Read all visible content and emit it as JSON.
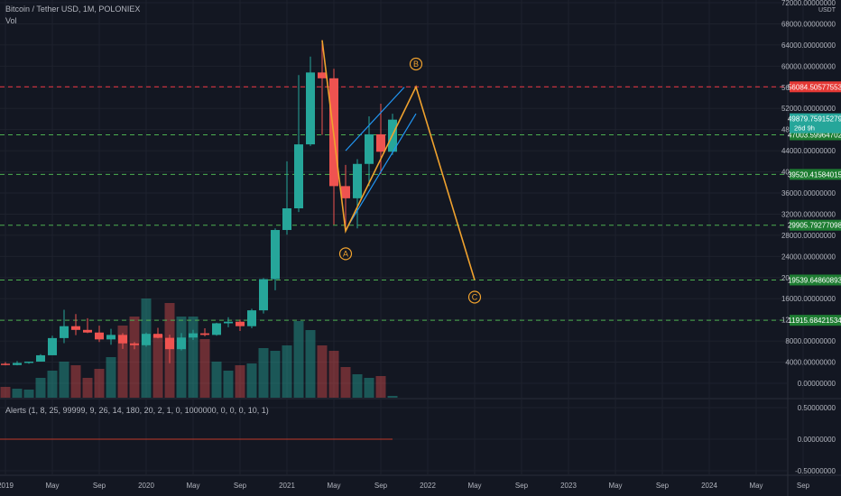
{
  "header": {
    "title": "Bitcoin / Tether USD, 1M, POLONIEX",
    "vol_label": "Vol",
    "alerts_label": "Alerts (1, 8, 25, 99999, 9, 26, 14, 180, 20, 2, 1, 0, 1000000, 0, 0, 0, 10, 1)"
  },
  "colors": {
    "background": "#131722",
    "up": "#26a69a",
    "down": "#ef5350",
    "pattern": "#f0a22e",
    "channel": "#2196f3",
    "level_red": "#f23645",
    "level_green": "#4caf50",
    "current": "#26a69a"
  },
  "chart_data": {
    "type": "candlestick",
    "title": "Bitcoin / Tether USD, 1M, POLONIEX",
    "currency_label": "USDT",
    "price_ticks": [
      0,
      4000,
      8000,
      12000,
      16000,
      20000,
      24000,
      28000,
      32000,
      36000,
      40000,
      44000,
      48000,
      52000,
      56000,
      60000,
      64000,
      68000,
      72000
    ],
    "price_tick_labels": [
      "0.00000000",
      "4000.00000000",
      "8000.00000000",
      "12000.00000000",
      "16000.00000000",
      "20000.00000000",
      "24000.00000000",
      "28000.00000000",
      "32000.00000000",
      "36000.00000000",
      "40000.00000000",
      "44000.00000000",
      "48000.00000000",
      "52000.00000000",
      "56000.00000000",
      "60000.00000000",
      "64000.00000000",
      "68000.00000000",
      "72000.00000000"
    ],
    "time_axis": [
      {
        "month": "2019-01",
        "label": "2019"
      },
      {
        "month": "2019-05",
        "label": "May"
      },
      {
        "month": "2019-09",
        "label": "Sep"
      },
      {
        "month": "2020-01",
        "label": "2020"
      },
      {
        "month": "2020-05",
        "label": "May"
      },
      {
        "month": "2020-09",
        "label": "Sep"
      },
      {
        "month": "2021-01",
        "label": "2021"
      },
      {
        "month": "2021-05",
        "label": "May"
      },
      {
        "month": "2021-09",
        "label": "Sep"
      },
      {
        "month": "2022-01",
        "label": "2022"
      },
      {
        "month": "2022-05",
        "label": "May"
      },
      {
        "month": "2022-09",
        "label": "Sep"
      },
      {
        "month": "2023-01",
        "label": "2023"
      },
      {
        "month": "2023-05",
        "label": "May"
      },
      {
        "month": "2023-09",
        "label": "Sep"
      },
      {
        "month": "2024-01",
        "label": "2024"
      },
      {
        "month": "2024-05",
        "label": "May"
      },
      {
        "month": "2024-09",
        "label": "Sep"
      }
    ],
    "candles": [
      {
        "month": "2018-10",
        "o": 6600,
        "h": 7100,
        "l": 6200,
        "c": 6300
      },
      {
        "month": "2018-11",
        "o": 6300,
        "h": 6500,
        "l": 3700,
        "c": 4000
      },
      {
        "month": "2018-12",
        "o": 4000,
        "h": 4300,
        "l": 3200,
        "c": 3700
      },
      {
        "month": "2019-01",
        "o": 3700,
        "h": 4000,
        "l": 3400,
        "c": 3450
      },
      {
        "month": "2019-02",
        "o": 3450,
        "h": 4200,
        "l": 3400,
        "c": 3850
      },
      {
        "month": "2019-03",
        "o": 3850,
        "h": 4100,
        "l": 3700,
        "c": 4100
      },
      {
        "month": "2019-04",
        "o": 4100,
        "h": 5500,
        "l": 4100,
        "c": 5300
      },
      {
        "month": "2019-05",
        "o": 5300,
        "h": 9000,
        "l": 5300,
        "c": 8550
      },
      {
        "month": "2019-06",
        "o": 8550,
        "h": 13900,
        "l": 7600,
        "c": 10800
      },
      {
        "month": "2019-07",
        "o": 10800,
        "h": 13100,
        "l": 9100,
        "c": 10100
      },
      {
        "month": "2019-08",
        "o": 10100,
        "h": 12300,
        "l": 9500,
        "c": 9600
      },
      {
        "month": "2019-09",
        "o": 9600,
        "h": 10900,
        "l": 7800,
        "c": 8300
      },
      {
        "month": "2019-10",
        "o": 8300,
        "h": 10300,
        "l": 7300,
        "c": 9150
      },
      {
        "month": "2019-11",
        "o": 9150,
        "h": 9500,
        "l": 6500,
        "c": 7550
      },
      {
        "month": "2019-12",
        "o": 7550,
        "h": 7800,
        "l": 6450,
        "c": 7200
      },
      {
        "month": "2020-01",
        "o": 7200,
        "h": 9600,
        "l": 6900,
        "c": 9350
      },
      {
        "month": "2020-02",
        "o": 9350,
        "h": 10500,
        "l": 8500,
        "c": 8600
      },
      {
        "month": "2020-03",
        "o": 8600,
        "h": 9200,
        "l": 3800,
        "c": 6450
      },
      {
        "month": "2020-04",
        "o": 6450,
        "h": 9500,
        "l": 6200,
        "c": 8650
      },
      {
        "month": "2020-05",
        "o": 8650,
        "h": 10100,
        "l": 8200,
        "c": 9450
      },
      {
        "month": "2020-06",
        "o": 9450,
        "h": 10400,
        "l": 8900,
        "c": 9150
      },
      {
        "month": "2020-07",
        "o": 9150,
        "h": 11450,
        "l": 9000,
        "c": 11350
      },
      {
        "month": "2020-08",
        "o": 11350,
        "h": 12500,
        "l": 10600,
        "c": 11650
      },
      {
        "month": "2020-09",
        "o": 11650,
        "h": 12050,
        "l": 9900,
        "c": 10800
      },
      {
        "month": "2020-10",
        "o": 10800,
        "h": 14100,
        "l": 10400,
        "c": 13800
      },
      {
        "month": "2020-11",
        "o": 13800,
        "h": 19900,
        "l": 13200,
        "c": 19700
      },
      {
        "month": "2020-12",
        "o": 19700,
        "h": 29300,
        "l": 17600,
        "c": 29000
      },
      {
        "month": "2021-01",
        "o": 29000,
        "h": 42000,
        "l": 28100,
        "c": 33100
      },
      {
        "month": "2021-02",
        "o": 33100,
        "h": 58300,
        "l": 32400,
        "c": 45200
      },
      {
        "month": "2021-03",
        "o": 45200,
        "h": 61800,
        "l": 44900,
        "c": 58800
      },
      {
        "month": "2021-04",
        "o": 58800,
        "h": 64900,
        "l": 47000,
        "c": 57700
      },
      {
        "month": "2021-05",
        "o": 57700,
        "h": 59500,
        "l": 30000,
        "c": 37300
      },
      {
        "month": "2021-06",
        "o": 37300,
        "h": 41300,
        "l": 28800,
        "c": 35000
      },
      {
        "month": "2021-07",
        "o": 35000,
        "h": 42400,
        "l": 29300,
        "c": 41500
      },
      {
        "month": "2021-08",
        "o": 41500,
        "h": 50500,
        "l": 37300,
        "c": 47100
      },
      {
        "month": "2021-09",
        "o": 47100,
        "h": 52900,
        "l": 39600,
        "c": 43800
      },
      {
        "month": "2021-10",
        "o": 43800,
        "h": 51000,
        "l": 43200,
        "c": 49880
      }
    ],
    "volume_months": [
      "2018-10",
      "2018-11",
      "2018-12",
      "2019-01",
      "2019-02",
      "2019-03",
      "2019-04",
      "2019-05",
      "2019-06",
      "2019-07",
      "2019-08",
      "2019-09",
      "2019-10",
      "2019-11",
      "2019-12",
      "2020-01",
      "2020-02",
      "2020-03",
      "2020-04",
      "2020-05",
      "2020-06",
      "2020-07",
      "2020-08",
      "2020-09",
      "2020-10",
      "2020-11",
      "2020-12",
      "2021-01",
      "2021-02",
      "2021-03",
      "2021-04",
      "2021-05",
      "2021-06",
      "2021-07",
      "2021-08",
      "2021-09",
      "2021-10"
    ],
    "volume_values": [
      22,
      40,
      34,
      12,
      10,
      9,
      22,
      30,
      40,
      36,
      22,
      32,
      45,
      80,
      90,
      110,
      70,
      105,
      90,
      90,
      65,
      40,
      30,
      36,
      38,
      55,
      52,
      58,
      85,
      75,
      58,
      52,
      34,
      26,
      22,
      24,
      2
    ],
    "levels": [
      {
        "price": 56084.50577553,
        "label": "56084.50577553",
        "kind": "resistance"
      },
      {
        "price": 47003.59964702,
        "label": "47003.59964702",
        "kind": "support"
      },
      {
        "price": 39520.41584015,
        "label": "39520.41584015",
        "kind": "support"
      },
      {
        "price": 29905.79277098,
        "label": "29905.79277098",
        "kind": "support"
      },
      {
        "price": 19539.64860893,
        "label": "19539.64860893",
        "kind": "support"
      },
      {
        "price": 11915.68421534,
        "label": "11915.68421534",
        "kind": "support"
      }
    ],
    "current_price": {
      "price": 49879.75915279,
      "label": "49879.75915279",
      "countdown": "26d 9h"
    },
    "abc_pattern": [
      {
        "month": "2021-04",
        "price": 64900
      },
      {
        "month": "2021-06",
        "price": 28800
      },
      {
        "month": "2021-12",
        "price": 56084.50577553
      },
      {
        "month": "2022-05",
        "price": 19539.64860893
      }
    ],
    "wave_labels": [
      {
        "text": "A",
        "month": "2021-06",
        "price": 24500
      },
      {
        "text": "B",
        "month": "2021-12",
        "price": 60400
      },
      {
        "text": "C",
        "month": "2022-05",
        "price": 16300
      }
    ],
    "channel_lines": [
      {
        "from": {
          "month": "2021-06",
          "price": 44000
        },
        "to": {
          "month": "2021-11",
          "price": 56000
        }
      },
      {
        "from": {
          "month": "2021-06",
          "price": 29000
        },
        "to": {
          "month": "2021-12",
          "price": 51000
        }
      }
    ],
    "indicator": {
      "ticks": [
        0.5,
        0,
        -0.5
      ],
      "tick_labels": [
        "0.50000000",
        "0.00000000",
        "-0.50000000"
      ],
      "line_value": 0,
      "line_end_month": "2021-10"
    }
  }
}
